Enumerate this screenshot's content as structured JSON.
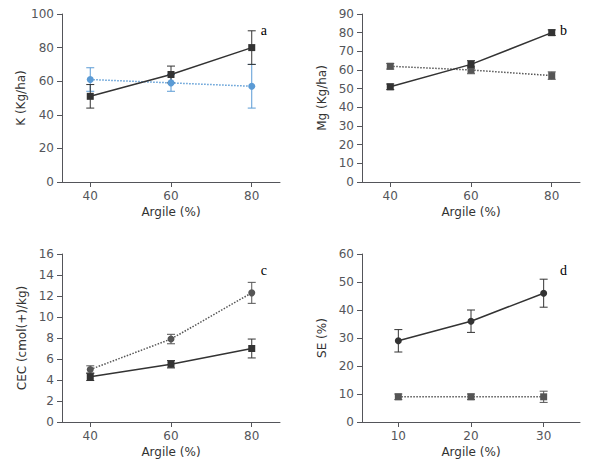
{
  "chart_data": [
    {
      "type": "line",
      "annotation": "a",
      "xlabel": "Argile (%)",
      "ylabel": "K (Kg/ha)",
      "x": [
        40,
        60,
        80
      ],
      "xlim": [
        33,
        87
      ],
      "xticks": [
        40,
        60,
        80
      ],
      "ylim": [
        0,
        100
      ],
      "yticks": [
        0,
        20,
        40,
        60,
        80,
        100
      ],
      "grid": false,
      "series": [
        {
          "color": "#5b9bd5",
          "values": [
            61,
            59,
            57
          ],
          "errors": [
            7,
            5,
            13
          ],
          "marker": "circle",
          "line_style": "dotted"
        },
        {
          "color": "#333333",
          "values": [
            51,
            64,
            80
          ],
          "errors": [
            7,
            5,
            10
          ],
          "marker": "square",
          "line_style": "solid"
        }
      ]
    },
    {
      "type": "line",
      "annotation": "b",
      "xlabel": "Argile (%)",
      "ylabel": "Mg (Kg/ha)",
      "x": [
        40,
        60,
        80
      ],
      "xlim": [
        33,
        87
      ],
      "xticks": [
        40,
        60,
        80
      ],
      "ylim": [
        0,
        90
      ],
      "yticks": [
        0,
        10,
        20,
        30,
        40,
        50,
        60,
        70,
        80,
        90
      ],
      "grid": false,
      "series": [
        {
          "color": "#555555",
          "values": [
            62,
            60,
            57
          ],
          "errors": [
            1.5,
            2,
            2
          ],
          "marker": "square",
          "line_style": "dotted"
        },
        {
          "color": "#333333",
          "values": [
            51,
            63,
            80
          ],
          "errors": [
            1.5,
            2,
            1.5
          ],
          "marker": "square",
          "line_style": "solid"
        }
      ]
    },
    {
      "type": "line",
      "annotation": "c",
      "xlabel": "Argile (%)",
      "ylabel": "CEC (cmol(+)/kg)",
      "x": [
        40,
        60,
        80
      ],
      "xlim": [
        33,
        87
      ],
      "xticks": [
        40,
        60,
        80
      ],
      "ylim": [
        0,
        16
      ],
      "yticks": [
        0,
        2,
        4,
        6,
        8,
        10,
        12,
        14,
        16
      ],
      "grid": false,
      "series": [
        {
          "color": "#555555",
          "values": [
            5.0,
            7.9,
            12.3
          ],
          "errors": [
            0.35,
            0.45,
            1.0
          ],
          "marker": "circle",
          "line_style": "dotted"
        },
        {
          "color": "#333333",
          "values": [
            4.3,
            5.5,
            7.0
          ],
          "errors": [
            0.35,
            0.35,
            0.9
          ],
          "marker": "square",
          "line_style": "solid"
        }
      ]
    },
    {
      "type": "line",
      "annotation": "d",
      "xlabel": "Argile (%)",
      "ylabel": "SE (%)",
      "x": [
        10,
        20,
        30
      ],
      "xlim": [
        5,
        35
      ],
      "xticks": [
        10,
        20,
        30
      ],
      "ylim": [
        0,
        60
      ],
      "yticks": [
        0,
        10,
        20,
        30,
        40,
        50,
        60
      ],
      "grid": false,
      "series": [
        {
          "color": "#555555",
          "values": [
            9,
            9,
            9
          ],
          "errors": [
            1,
            1,
            2
          ],
          "marker": "square",
          "line_style": "dotted"
        },
        {
          "color": "#333333",
          "values": [
            29,
            36,
            46
          ],
          "errors": [
            4,
            4,
            5
          ],
          "marker": "circle",
          "line_style": "solid"
        }
      ]
    }
  ]
}
